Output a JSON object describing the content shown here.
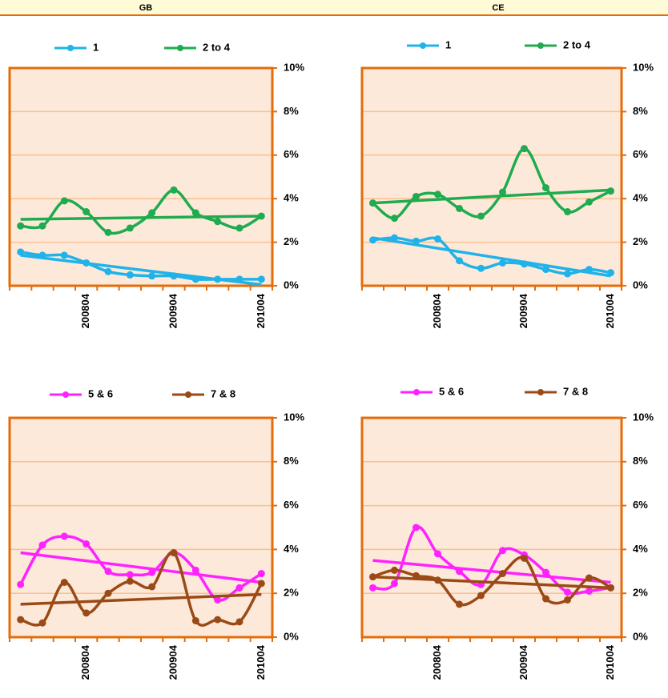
{
  "columns": [
    "GB",
    "CE"
  ],
  "chart_data": [
    {
      "type": "line",
      "categories": [
        null,
        null,
        null,
        "200804",
        null,
        null,
        null,
        "200904",
        null,
        null,
        null,
        "201004"
      ],
      "series": [
        {
          "name": "1",
          "color": "#1fb3ea",
          "values": [
            1.55,
            1.4,
            1.4,
            1.05,
            0.65,
            0.5,
            0.45,
            0.45,
            0.3,
            0.3,
            0.3,
            0.3
          ],
          "trend": [
            1.4,
            0.05
          ]
        },
        {
          "name": "2 to 4",
          "color": "#1fab4f",
          "values": [
            2.75,
            2.75,
            3.9,
            3.4,
            2.45,
            2.65,
            3.35,
            4.4,
            3.35,
            2.95,
            2.65,
            3.2
          ],
          "trend": [
            3.05,
            3.2
          ]
        }
      ],
      "ylim": [
        0,
        10
      ],
      "yticks": [
        {
          "value": 0,
          "label": "0%"
        },
        {
          "value": 2,
          "label": "2%"
        },
        {
          "value": 4,
          "label": "4%"
        },
        {
          "value": 6,
          "label": "6%"
        },
        {
          "value": 8,
          "label": "8%"
        },
        {
          "value": 10,
          "label": "10%"
        }
      ],
      "grid": true
    },
    {
      "type": "line",
      "categories": [
        null,
        null,
        null,
        "200804",
        null,
        null,
        null,
        "200904",
        null,
        null,
        null,
        "201004"
      ],
      "series": [
        {
          "name": "1",
          "color": "#1fb3ea",
          "values": [
            2.1,
            2.2,
            2.05,
            2.15,
            1.15,
            0.8,
            1.05,
            1.0,
            0.75,
            0.55,
            0.75,
            0.6
          ],
          "trend": [
            2.2,
            0.45
          ]
        },
        {
          "name": "2 to 4",
          "color": "#1fab4f",
          "values": [
            3.8,
            3.1,
            4.1,
            4.2,
            3.55,
            3.2,
            4.3,
            6.3,
            4.5,
            3.4,
            3.85,
            4.35
          ],
          "trend": [
            3.8,
            4.4
          ]
        }
      ],
      "ylim": [
        0,
        10
      ],
      "yticks": [
        {
          "value": 0,
          "label": "0%"
        },
        {
          "value": 2,
          "label": "2%"
        },
        {
          "value": 4,
          "label": "4%"
        },
        {
          "value": 6,
          "label": "6%"
        },
        {
          "value": 8,
          "label": "8%"
        },
        {
          "value": 10,
          "label": "10%"
        }
      ],
      "grid": true
    },
    {
      "type": "line",
      "categories": [
        null,
        null,
        null,
        "200804",
        null,
        null,
        null,
        "200904",
        null,
        null,
        null,
        "201004"
      ],
      "series": [
        {
          "name": "5 & 6",
          "color": "#ff22ff",
          "values": [
            2.4,
            4.2,
            4.6,
            4.25,
            3.0,
            2.85,
            2.95,
            3.85,
            3.05,
            1.7,
            2.25,
            2.9
          ],
          "trend": [
            3.85,
            2.5
          ]
        },
        {
          "name": "7 & 8",
          "color": "#9a4a16",
          "values": [
            0.8,
            0.65,
            2.5,
            1.1,
            2.0,
            2.55,
            2.3,
            3.85,
            0.75,
            0.8,
            0.7,
            2.45
          ],
          "trend": [
            1.5,
            1.95
          ]
        }
      ],
      "ylim": [
        0,
        10
      ],
      "yticks": [
        {
          "value": 0,
          "label": "0%"
        },
        {
          "value": 2,
          "label": "2%"
        },
        {
          "value": 4,
          "label": "4%"
        },
        {
          "value": 6,
          "label": "6%"
        },
        {
          "value": 8,
          "label": "8%"
        },
        {
          "value": 10,
          "label": "10%"
        }
      ],
      "grid": true
    },
    {
      "type": "line",
      "categories": [
        null,
        null,
        null,
        "200804",
        null,
        null,
        null,
        "200904",
        null,
        null,
        null,
        "201004"
      ],
      "series": [
        {
          "name": "5 & 6",
          "color": "#ff22ff",
          "values": [
            2.25,
            2.45,
            5.0,
            3.8,
            3.0,
            2.4,
            3.95,
            3.75,
            2.95,
            2.05,
            2.1,
            2.25
          ],
          "trend": [
            3.5,
            2.5
          ]
        },
        {
          "name": "7 & 8",
          "color": "#9a4a16",
          "values": [
            2.75,
            3.05,
            2.8,
            2.6,
            1.5,
            1.9,
            2.9,
            3.6,
            1.75,
            1.7,
            2.7,
            2.25
          ],
          "trend": [
            2.75,
            2.25
          ]
        }
      ],
      "ylim": [
        0,
        10
      ],
      "yticks": [
        {
          "value": 0,
          "label": "0%"
        },
        {
          "value": 2,
          "label": "2%"
        },
        {
          "value": 4,
          "label": "4%"
        },
        {
          "value": 6,
          "label": "6%"
        },
        {
          "value": 8,
          "label": "8%"
        },
        {
          "value": 10,
          "label": "10%"
        }
      ],
      "grid": true
    }
  ]
}
